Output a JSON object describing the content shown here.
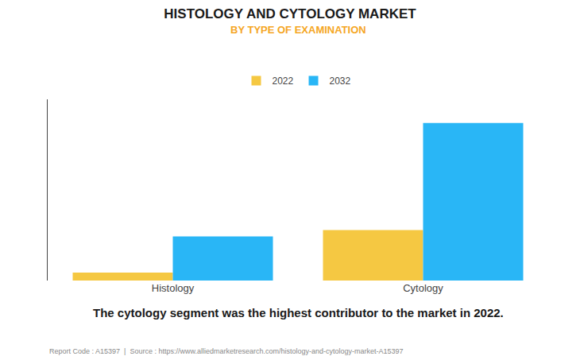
{
  "chart_data": {
    "type": "bar",
    "title": "HISTOLOGY AND CYTOLOGY MARKET",
    "subtitle": "BY TYPE OF EXAMINATION",
    "categories": [
      "Histology",
      "Cytology"
    ],
    "series": [
      {
        "name": "2022",
        "color": "#F5C842",
        "values": [
          0.5,
          3.2
        ]
      },
      {
        "name": "2032",
        "color": "#29B6F6",
        "values": [
          2.8,
          10.0
        ]
      }
    ],
    "ylim": [
      0,
      11.5
    ],
    "yticks": [],
    "tick_labels": "x",
    "grid": false,
    "legend": "top",
    "annotations": [
      "The cytology segment was the highest contributor to the market in 2022.",
      "Report Code : A15397  |  Source : https://www.alliedmarketresearch.com/histology-and-cytology-market-A15397"
    ]
  }
}
